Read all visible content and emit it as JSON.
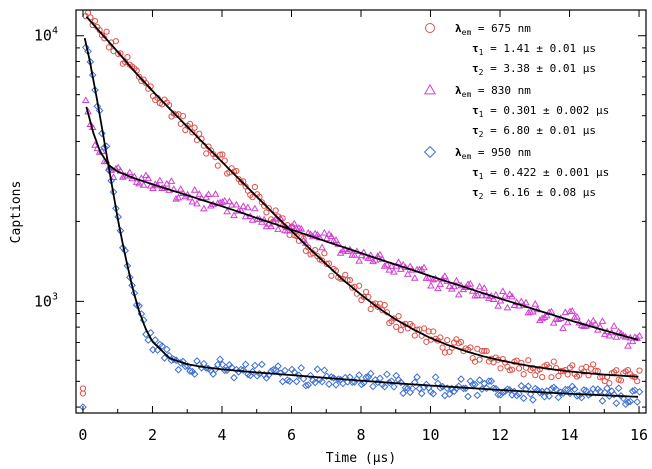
{
  "chart_data": {
    "type": "scatter",
    "title": "",
    "xlabel": "Time (μs)",
    "ylabel": "Captions",
    "xlim": [
      -0.2,
      16.2
    ],
    "ylim": [
      380,
      12500
    ],
    "yscale": "log",
    "xticks": [
      "0",
      "2",
      "4",
      "6",
      "8",
      "10",
      "12",
      "14",
      "16"
    ],
    "yticks": [
      {
        "value": 1000,
        "base": "10",
        "exp": "3"
      },
      {
        "value": 10000,
        "base": "10",
        "exp": "4"
      }
    ],
    "grid": false,
    "legend_position": "top-right",
    "series": [
      {
        "name": "λem = 675 nm",
        "lambda": "675 nm",
        "color": "#e0504a",
        "marker": "circle",
        "tau1": "1.41 ± 0.01 μs",
        "tau2": "3.38 ± 0.01 μs",
        "outliers": [
          [
            0.0,
            450
          ],
          [
            0.0,
            470
          ]
        ],
        "points": [
          [
            0.1,
            11800
          ],
          [
            0.5,
            10300
          ],
          [
            1.0,
            8700
          ],
          [
            1.5,
            7300
          ],
          [
            2.0,
            6200
          ],
          [
            2.5,
            5300
          ],
          [
            3.0,
            4550
          ],
          [
            3.5,
            3900
          ],
          [
            4.0,
            3350
          ],
          [
            4.5,
            2880
          ],
          [
            5.0,
            2480
          ],
          [
            5.5,
            2130
          ],
          [
            6.0,
            1840
          ],
          [
            6.5,
            1590
          ],
          [
            7.0,
            1380
          ],
          [
            7.5,
            1200
          ],
          [
            8.0,
            1060
          ],
          [
            8.5,
            945
          ],
          [
            9.0,
            855
          ],
          [
            9.5,
            785
          ],
          [
            10.0,
            728
          ],
          [
            10.5,
            685
          ],
          [
            11.0,
            650
          ],
          [
            11.5,
            622
          ],
          [
            12.0,
            600
          ],
          [
            12.5,
            582
          ],
          [
            13.0,
            567
          ],
          [
            13.5,
            555
          ],
          [
            14.0,
            545
          ],
          [
            14.5,
            537
          ],
          [
            15.0,
            530
          ],
          [
            15.5,
            525
          ],
          [
            16.0,
            520
          ]
        ]
      },
      {
        "name": "λem = 830 nm",
        "lambda": "830 nm",
        "color": "#d23fd2",
        "marker": "triangle",
        "tau1": "0.301 ± 0.002 μs",
        "tau2": "6.80 ± 0.01 μs",
        "points": [
          [
            0.1,
            5400
          ],
          [
            0.3,
            4300
          ],
          [
            0.5,
            3650
          ],
          [
            0.75,
            3250
          ],
          [
            1.0,
            3080
          ],
          [
            1.5,
            2900
          ],
          [
            2.0,
            2760
          ],
          [
            2.5,
            2630
          ],
          [
            3.0,
            2510
          ],
          [
            3.5,
            2390
          ],
          [
            4.0,
            2280
          ],
          [
            4.5,
            2170
          ],
          [
            5.0,
            2060
          ],
          [
            5.5,
            1960
          ],
          [
            6.0,
            1860
          ],
          [
            6.5,
            1770
          ],
          [
            7.0,
            1680
          ],
          [
            7.5,
            1600
          ],
          [
            8.0,
            1520
          ],
          [
            8.5,
            1445
          ],
          [
            9.0,
            1375
          ],
          [
            9.5,
            1310
          ],
          [
            10.0,
            1245
          ],
          [
            10.5,
            1185
          ],
          [
            11.0,
            1130
          ],
          [
            11.5,
            1075
          ],
          [
            12.0,
            1025
          ],
          [
            12.5,
            978
          ],
          [
            13.0,
            933
          ],
          [
            13.5,
            890
          ],
          [
            14.0,
            850
          ],
          [
            14.5,
            813
          ],
          [
            15.0,
            778
          ],
          [
            15.5,
            745
          ],
          [
            16.0,
            715
          ]
        ]
      },
      {
        "name": "λem = 950 nm",
        "lambda": "950 nm",
        "color": "#3c6fd4",
        "marker": "diamond",
        "tau1": "0.422 ± 0.001 μs",
        "tau2": "6.16 ± 0.08 μs",
        "outliers": [
          [
            0.0,
            400
          ]
        ],
        "points": [
          [
            0.05,
            9800
          ],
          [
            0.2,
            8000
          ],
          [
            0.4,
            5800
          ],
          [
            0.6,
            4100
          ],
          [
            0.8,
            2900
          ],
          [
            1.0,
            2050
          ],
          [
            1.2,
            1520
          ],
          [
            1.4,
            1160
          ],
          [
            1.6,
            930
          ],
          [
            1.8,
            790
          ],
          [
            2.0,
            705
          ],
          [
            2.5,
            610
          ],
          [
            3.0,
            580
          ],
          [
            3.5,
            565
          ],
          [
            4.0,
            555
          ],
          [
            5.0,
            540
          ],
          [
            6.0,
            528
          ],
          [
            7.0,
            515
          ],
          [
            8.0,
            503
          ],
          [
            9.0,
            492
          ],
          [
            10.0,
            482
          ],
          [
            11.0,
            473
          ],
          [
            12.0,
            464
          ],
          [
            13.0,
            456
          ],
          [
            14.0,
            449
          ],
          [
            15.0,
            443
          ],
          [
            16.0,
            437
          ]
        ]
      }
    ]
  }
}
